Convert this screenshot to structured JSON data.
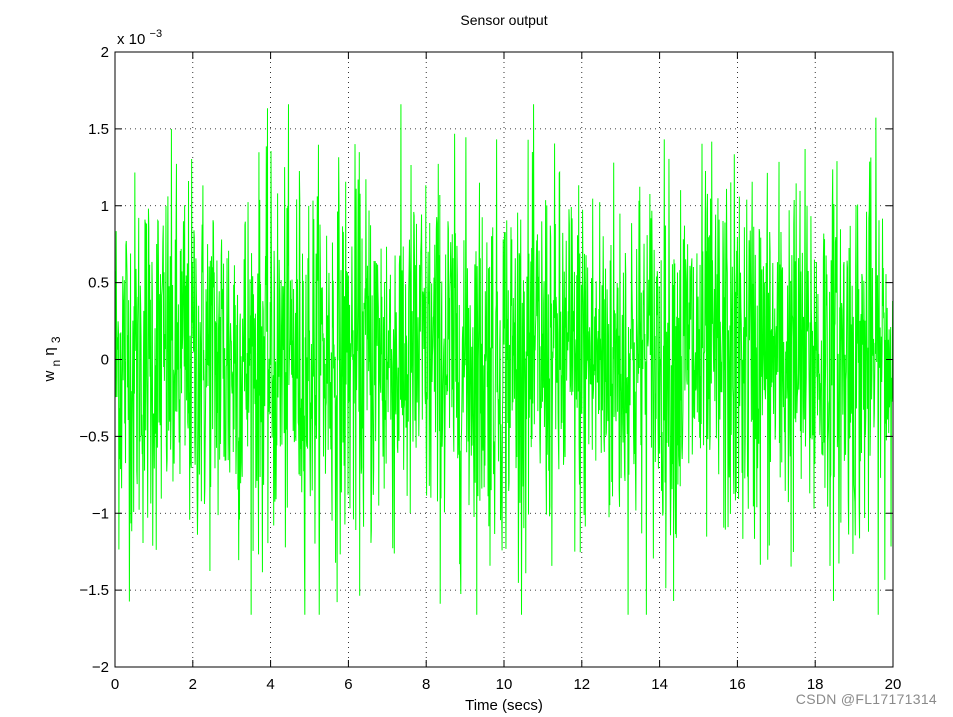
{
  "chart_data": {
    "type": "line",
    "title": "Sensor output",
    "xlabel": "Time (secs)",
    "ylabel": {
      "base": "w",
      "sub1": "n",
      "mid": "η",
      "sub2": "3"
    },
    "y_exponent_label": {
      "prefix": "x 10",
      "exp": "−3"
    },
    "xlim": [
      0,
      20
    ],
    "ylim": [
      -2,
      2
    ],
    "xticks": [
      0,
      2,
      4,
      6,
      8,
      10,
      12,
      14,
      16,
      18,
      20
    ],
    "yticks": [
      -2,
      -1.5,
      -1,
      -0.5,
      0,
      0.5,
      1,
      1.5,
      2
    ],
    "ytick_labels": [
      "−2",
      "−1.5",
      "−1",
      "−0.5",
      "0",
      "0.5",
      "1",
      "1.5",
      "2"
    ],
    "grid": true,
    "grid_style": "dotted",
    "series": [
      {
        "color": "#00ff00",
        "sample_count": 2000,
        "x_step": 0.01,
        "amplitude_std": 0.6,
        "amplitude_max": 1.66,
        "description_values_units": "x10^-3"
      }
    ]
  },
  "watermark": "CSDN @FL17171314"
}
